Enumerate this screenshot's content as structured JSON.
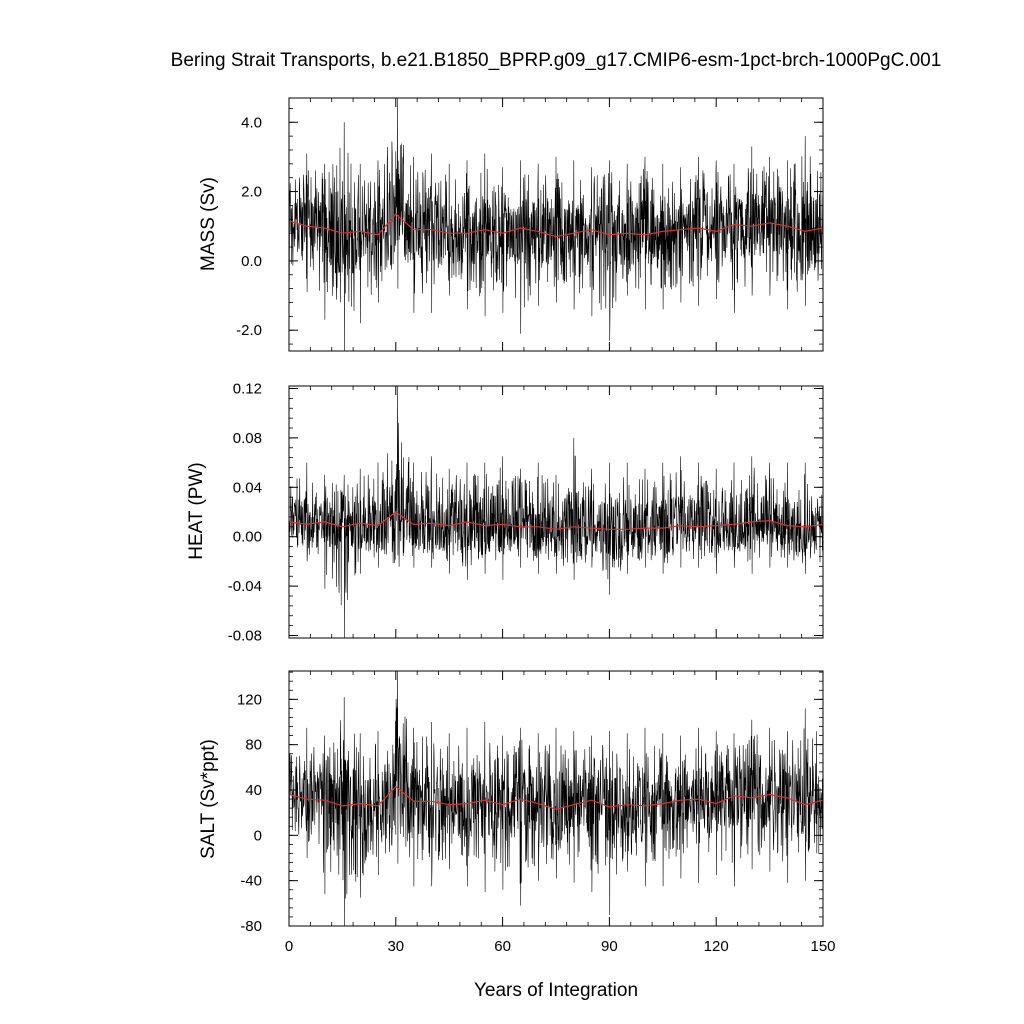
{
  "title": "Bering Strait Transports, b.e21.B1850_BPRP.g09_g17.CMIP6-esm-1pct-brch-1000PgC.001",
  "xlabel": "Years of Integration",
  "colors": {
    "raw": "#000000",
    "smooth": "#e0302a",
    "frame": "#000000",
    "background": "#ffffff"
  },
  "chart_data": [
    {
      "type": "line",
      "ylabel": "MASS (Sv)",
      "xlim": [
        0,
        150
      ],
      "ylim": [
        -2.6,
        4.7
      ],
      "x_ticks": [
        0,
        30,
        60,
        90,
        120,
        150
      ],
      "y_ticks": [
        -2.0,
        0.0,
        2.0,
        4.0
      ],
      "y_tick_labels": [
        "-2.0",
        "0.0",
        "2.0",
        "4.0"
      ],
      "series": [
        {
          "role": "monthly",
          "x": [
            0,
            5,
            10,
            15.5,
            20,
            25,
            30.5,
            35,
            40,
            45,
            50,
            55,
            60,
            65,
            70,
            75,
            80,
            85,
            90,
            95,
            100,
            105,
            110,
            115,
            120,
            125,
            130,
            135,
            140,
            145,
            150
          ],
          "mean": [
            1.1,
            1.0,
            0.9,
            0.8,
            0.8,
            0.8,
            1.3,
            0.9,
            0.9,
            0.8,
            0.8,
            0.9,
            0.8,
            0.9,
            0.9,
            0.7,
            0.8,
            0.9,
            0.7,
            0.8,
            0.8,
            0.8,
            0.9,
            0.9,
            0.8,
            1.0,
            1.0,
            1.1,
            1.0,
            0.8,
            0.9
          ],
          "max": [
            2.7,
            3.1,
            2.8,
            4.0,
            2.8,
            2.9,
            4.7,
            3.0,
            3.1,
            2.8,
            2.9,
            3.1,
            2.7,
            2.9,
            2.8,
            3.0,
            2.9,
            2.7,
            2.9,
            2.8,
            3.0,
            2.8,
            2.7,
            3.0,
            2.9,
            2.8,
            3.3,
            3.0,
            2.9,
            3.6,
            3.3
          ],
          "min": [
            -0.6,
            -0.9,
            -1.7,
            -2.6,
            -1.8,
            -1.2,
            -0.8,
            -1.5,
            -1.5,
            -1.0,
            -1.4,
            -1.6,
            -1.5,
            -2.1,
            -1.3,
            -1.2,
            -1.4,
            -1.6,
            -2.3,
            -1.0,
            -1.4,
            -1.4,
            -1.2,
            -1.3,
            -1.1,
            -1.5,
            -1.0,
            -1.0,
            -1.4,
            -1.3,
            -0.8
          ]
        },
        {
          "role": "annual-mean",
          "x": [
            0,
            5,
            10,
            15,
            20,
            25,
            30,
            35,
            40,
            45,
            50,
            55,
            60,
            65,
            70,
            75,
            80,
            85,
            90,
            95,
            100,
            105,
            110,
            115,
            120,
            125,
            130,
            135,
            140,
            145,
            150
          ],
          "y": [
            1.15,
            1.0,
            0.95,
            0.8,
            0.85,
            0.75,
            1.35,
            0.9,
            0.9,
            0.8,
            0.8,
            0.9,
            0.8,
            0.95,
            0.85,
            0.7,
            0.8,
            0.9,
            0.75,
            0.8,
            0.75,
            0.85,
            0.9,
            0.95,
            0.85,
            1.05,
            1.0,
            1.1,
            1.0,
            0.85,
            0.95
          ]
        }
      ]
    },
    {
      "type": "line",
      "ylabel": "HEAT (PW)",
      "xlim": [
        0,
        150
      ],
      "ylim": [
        -0.082,
        0.122
      ],
      "x_ticks": [
        0,
        30,
        60,
        90,
        120,
        150
      ],
      "y_ticks": [
        -0.08,
        -0.04,
        0.0,
        0.04,
        0.08,
        0.12
      ],
      "y_tick_labels": [
        "-0.08",
        "-0.04",
        "0.00",
        "0.04",
        "0.08",
        "0.12"
      ],
      "series": [
        {
          "role": "monthly",
          "x": [
            0,
            5,
            10,
            15.5,
            20,
            25,
            30.5,
            35,
            40,
            45,
            50,
            55,
            60,
            65,
            70,
            75,
            80,
            85,
            90,
            95,
            100,
            105,
            110,
            115,
            120,
            125,
            130,
            135,
            140,
            145,
            150
          ],
          "mean": [
            0.012,
            0.011,
            0.01,
            0.009,
            0.01,
            0.011,
            0.02,
            0.011,
            0.01,
            0.01,
            0.01,
            0.009,
            0.01,
            0.009,
            0.008,
            0.007,
            0.007,
            0.007,
            0.006,
            0.006,
            0.007,
            0.007,
            0.008,
            0.009,
            0.009,
            0.01,
            0.011,
            0.012,
            0.01,
            0.008,
            0.009
          ],
          "max": [
            0.05,
            0.06,
            0.05,
            0.05,
            0.055,
            0.06,
            0.122,
            0.06,
            0.065,
            0.055,
            0.06,
            0.06,
            0.065,
            0.055,
            0.06,
            0.05,
            0.08,
            0.055,
            0.06,
            0.06,
            0.055,
            0.06,
            0.065,
            0.06,
            0.055,
            0.06,
            0.065,
            0.06,
            0.06,
            0.06,
            0.06
          ],
          "min": [
            -0.01,
            -0.02,
            -0.042,
            -0.082,
            -0.03,
            -0.025,
            -0.015,
            -0.025,
            -0.025,
            -0.03,
            -0.035,
            -0.03,
            -0.035,
            -0.025,
            -0.03,
            -0.03,
            -0.035,
            -0.025,
            -0.047,
            -0.03,
            -0.025,
            -0.03,
            -0.025,
            -0.025,
            -0.03,
            -0.025,
            -0.03,
            -0.025,
            -0.025,
            -0.03,
            -0.03
          ]
        },
        {
          "role": "annual-mean",
          "x": [
            0,
            5,
            10,
            15,
            20,
            25,
            30,
            35,
            40,
            45,
            50,
            55,
            60,
            65,
            70,
            75,
            80,
            85,
            90,
            95,
            100,
            105,
            110,
            115,
            120,
            125,
            130,
            135,
            140,
            145,
            150
          ],
          "y": [
            0.012,
            0.01,
            0.012,
            0.008,
            0.011,
            0.009,
            0.02,
            0.01,
            0.011,
            0.009,
            0.012,
            0.009,
            0.01,
            0.008,
            0.008,
            0.006,
            0.008,
            0.007,
            0.006,
            0.006,
            0.007,
            0.007,
            0.009,
            0.008,
            0.009,
            0.01,
            0.012,
            0.013,
            0.009,
            0.008,
            0.01
          ]
        }
      ]
    },
    {
      "type": "line",
      "ylabel": "SALT (Sv*ppt)",
      "xlim": [
        0,
        150
      ],
      "ylim": [
        -80,
        145
      ],
      "x_ticks": [
        0,
        30,
        60,
        90,
        120,
        150
      ],
      "y_ticks": [
        -80,
        -40,
        0,
        40,
        80,
        120
      ],
      "y_tick_labels": [
        "-80",
        "-40",
        "0",
        "40",
        "80",
        "120"
      ],
      "series": [
        {
          "role": "monthly",
          "x": [
            0,
            5,
            10,
            15.5,
            20,
            25,
            30.5,
            35,
            40,
            45,
            50,
            55,
            60,
            65,
            70,
            75,
            80,
            85,
            90,
            95,
            100,
            105,
            110,
            115,
            120,
            125,
            130,
            135,
            140,
            145,
            150
          ],
          "mean": [
            36,
            33,
            30,
            27,
            28,
            27,
            42,
            30,
            30,
            28,
            28,
            30,
            27,
            31,
            29,
            24,
            27,
            30,
            25,
            28,
            27,
            28,
            30,
            31,
            29,
            34,
            33,
            36,
            33,
            28,
            31
          ],
          "max": [
            80,
            95,
            88,
            122,
            90,
            92,
            145,
            95,
            100,
            90,
            95,
            100,
            88,
            95,
            90,
            95,
            92,
            88,
            92,
            90,
            95,
            90,
            88,
            95,
            92,
            90,
            102,
            95,
            92,
            112,
            100
          ],
          "min": [
            -10,
            -20,
            -52,
            -80,
            -55,
            -35,
            -25,
            -45,
            -45,
            -30,
            -45,
            -50,
            -48,
            -62,
            -40,
            -38,
            -42,
            -50,
            -70,
            -32,
            -45,
            -45,
            -38,
            -42,
            -35,
            -45,
            -30,
            -32,
            -42,
            -40,
            -25
          ]
        },
        {
          "role": "annual-mean",
          "x": [
            0,
            5,
            10,
            15,
            20,
            25,
            30,
            35,
            40,
            45,
            50,
            55,
            60,
            65,
            70,
            75,
            80,
            85,
            90,
            95,
            100,
            105,
            110,
            115,
            120,
            125,
            130,
            135,
            140,
            145,
            150
          ],
          "y": [
            36,
            32,
            31,
            26,
            28,
            26,
            43,
            30,
            30,
            27,
            28,
            31,
            27,
            32,
            28,
            23,
            27,
            31,
            25,
            27,
            26,
            28,
            31,
            32,
            28,
            35,
            33,
            36,
            33,
            27,
            31
          ]
        }
      ]
    }
  ]
}
